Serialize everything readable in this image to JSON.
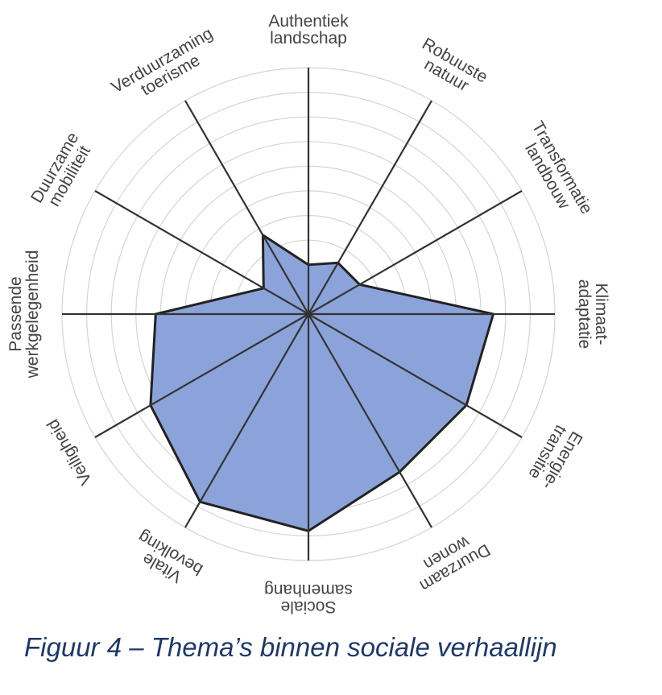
{
  "caption": "Figuur 4 – Thema’s binnen sociale verhaallijn",
  "chart_data": {
    "type": "radar",
    "title": "",
    "axes": [
      [
        "Authentiek",
        "landschap"
      ],
      [
        "Robuuste",
        "natuur"
      ],
      [
        "Transformatie",
        "landbouw"
      ],
      [
        "Klimaat-",
        "adaptatie"
      ],
      [
        "Energie-",
        "transitie"
      ],
      [
        "Duurzaam",
        "wonen"
      ],
      [
        "Sociale",
        "samenhang"
      ],
      [
        "Vitale",
        "bevolking"
      ],
      [
        "Veiligheid"
      ],
      [
        "Passende",
        "werkgelegenheid"
      ],
      [
        "Duurzame",
        "mobiliteit"
      ],
      [
        "Verduurzaming",
        "toerisme"
      ]
    ],
    "values": [
      2.0,
      2.4,
      2.4,
      7.5,
      7.4,
      7.4,
      8.8,
      8.8,
      7.4,
      6.2,
      2.1,
      3.7
    ],
    "range": [
      0,
      10
    ],
    "rings": 10,
    "fill_color": "#8ba3d9",
    "line_color": "#222222",
    "grid": true
  }
}
